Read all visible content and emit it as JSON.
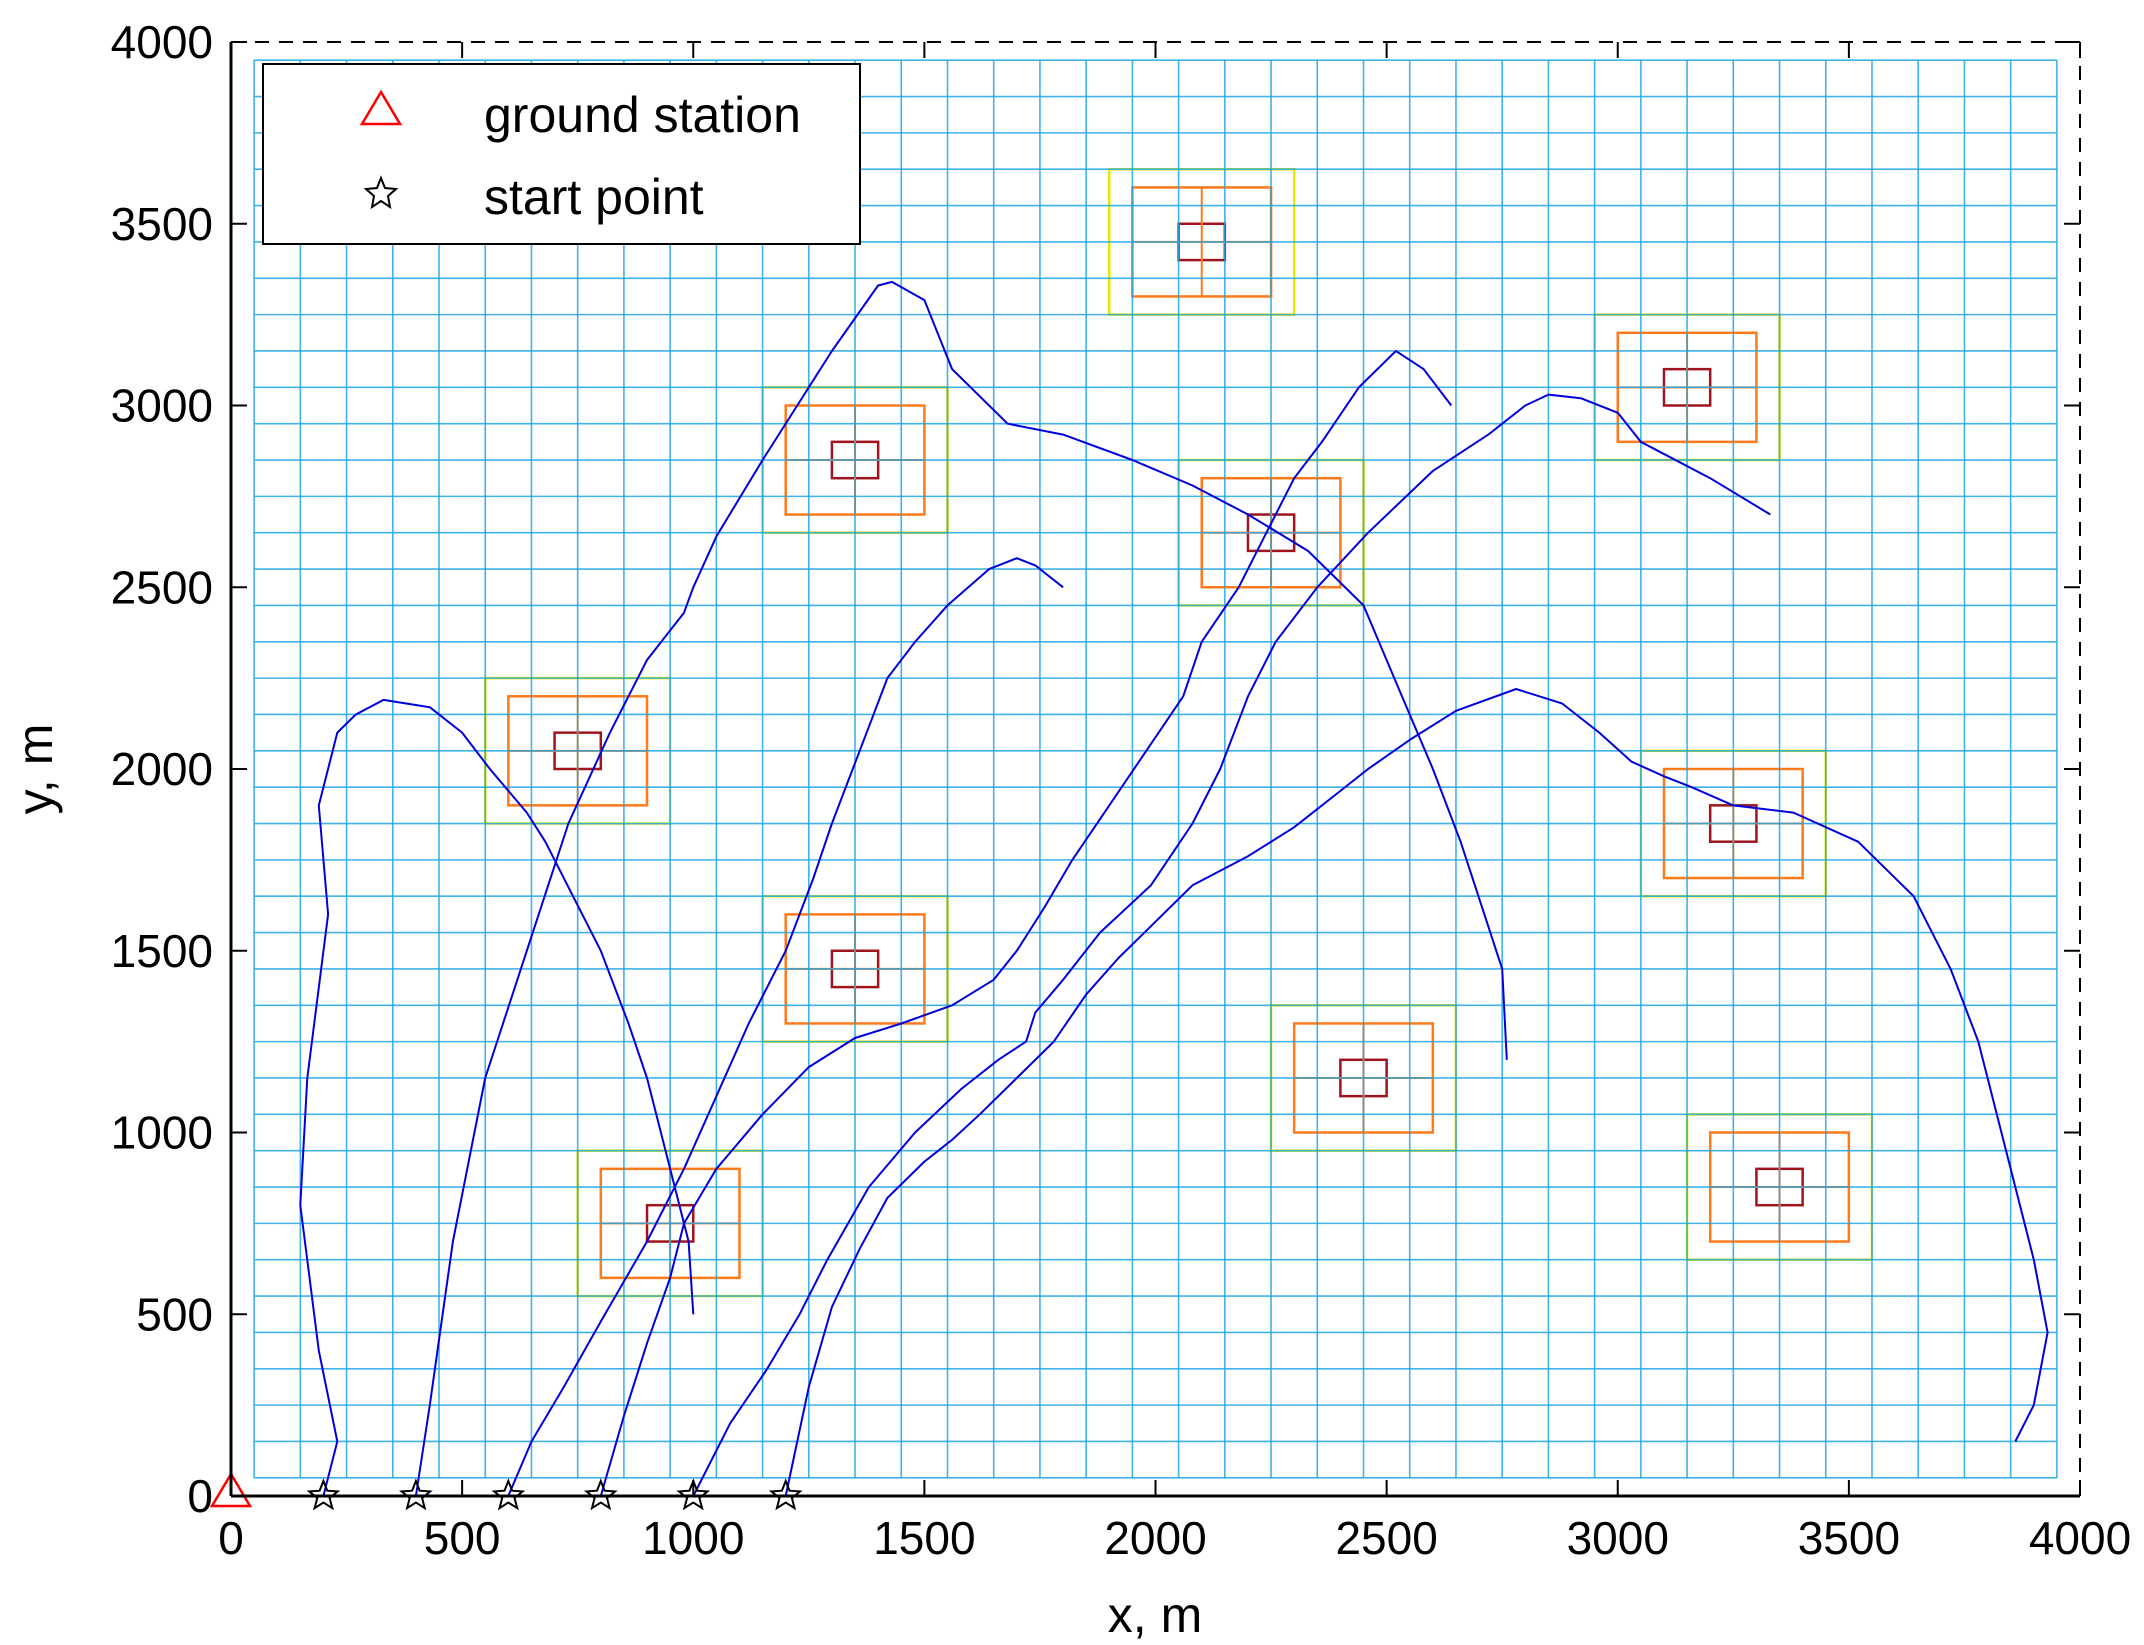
{
  "chart_data": {
    "type": "line",
    "title": "",
    "xlabel": "x, m",
    "ylabel": "y, m",
    "xlim": [
      0,
      4000
    ],
    "ylim": [
      0,
      4000
    ],
    "xticks": [
      0,
      500,
      1000,
      1500,
      2000,
      2500,
      3000,
      3500,
      4000
    ],
    "yticks": [
      0,
      500,
      1000,
      1500,
      2000,
      2500,
      3000,
      3500,
      4000
    ],
    "xtick_labels": [
      "0",
      "500",
      "1000",
      "1500",
      "2000",
      "2500",
      "3000",
      "3500",
      "4000"
    ],
    "ytick_labels": [
      "0",
      "500",
      "1000",
      "1500",
      "2000",
      "2500",
      "3000",
      "3500",
      "4000"
    ],
    "grid": {
      "x_start": 50,
      "x_end": 3950,
      "y_start": 50,
      "y_end": 3950,
      "step": 100,
      "color": "#1ea6e6"
    },
    "legend": {
      "placement": "top-left",
      "entries": [
        {
          "label": "ground station",
          "marker": "triangle",
          "color": "#ff0000"
        },
        {
          "label": "start point",
          "marker": "star",
          "color": "#000000"
        }
      ]
    },
    "ground_station": {
      "x": 0,
      "y": 0,
      "color": "#ff0000"
    },
    "start_points": [
      {
        "x": 200,
        "y": 0
      },
      {
        "x": 400,
        "y": 0
      },
      {
        "x": 600,
        "y": 0
      },
      {
        "x": 800,
        "y": 0
      },
      {
        "x": 1000,
        "y": 0
      },
      {
        "x": 1200,
        "y": 0
      }
    ],
    "hotspots": [
      {
        "cx": 2100,
        "cy": 3450
      },
      {
        "cx": 1350,
        "cy": 2850
      },
      {
        "cx": 2250,
        "cy": 2650
      },
      {
        "cx": 3150,
        "cy": 3050
      },
      {
        "cx": 750,
        "cy": 2050
      },
      {
        "cx": 3250,
        "cy": 1850
      },
      {
        "cx": 1350,
        "cy": 1450
      },
      {
        "cx": 2450,
        "cy": 1150
      },
      {
        "cx": 3350,
        "cy": 850
      },
      {
        "cx": 950,
        "cy": 750
      }
    ],
    "hotspot_colors": {
      "outer": "#e8e800",
      "middle": "#ff7a1a",
      "core": "#a0141e"
    },
    "trajectory_color": "#0000dd",
    "series": [
      {
        "x": [
          200,
          230,
          190,
          150,
          165,
          210,
          190,
          220,
          230,
          270,
          330,
          430,
          500,
          560,
          640,
          680,
          720,
          800,
          860,
          900,
          930,
          990,
          1000
        ],
        "y": [
          0,
          150,
          400,
          800,
          1150,
          1600,
          1900,
          2050,
          2100,
          2150,
          2190,
          2170,
          2100,
          2000,
          1880,
          1800,
          1700,
          1500,
          1300,
          1150,
          1000,
          700,
          500
        ]
      },
      {
        "x": [
          400,
          430,
          480,
          550,
          640,
          730,
          820,
          900,
          980,
          1000,
          1050,
          1150,
          1300,
          1400,
          1430,
          1500,
          1560,
          1680,
          1800,
          1950,
          2080,
          2200,
          2330,
          2450,
          2500,
          2550,
          2600,
          2660,
          2750,
          2760
        ],
        "y": [
          0,
          250,
          700,
          1150,
          1500,
          1850,
          2100,
          2300,
          2430,
          2500,
          2640,
          2850,
          3150,
          3330,
          3340,
          3290,
          3100,
          2950,
          2920,
          2850,
          2780,
          2700,
          2600,
          2450,
          2300,
          2150,
          2000,
          1800,
          1450,
          1200
        ]
      },
      {
        "x": [
          600,
          650,
          720,
          800,
          900,
          980,
          1050,
          1120,
          1200,
          1260,
          1300,
          1360,
          1420,
          1480,
          1550,
          1640,
          1700,
          1740,
          1800
        ],
        "y": [
          0,
          150,
          300,
          480,
          700,
          900,
          1100,
          1300,
          1500,
          1700,
          1850,
          2050,
          2250,
          2350,
          2450,
          2550,
          2580,
          2560,
          2500
        ]
      },
      {
        "x": [
          800,
          850,
          900,
          950,
          980,
          1050,
          1150,
          1250,
          1350,
          1450,
          1560,
          1650,
          1700,
          1760,
          1820,
          1900,
          1980,
          2060,
          2100,
          2180,
          2240,
          2300,
          2360,
          2440,
          2520,
          2580,
          2640
        ],
        "y": [
          0,
          220,
          420,
          600,
          750,
          900,
          1050,
          1180,
          1260,
          1300,
          1350,
          1420,
          1500,
          1620,
          1750,
          1900,
          2050,
          2200,
          2350,
          2500,
          2650,
          2800,
          2900,
          3050,
          3150,
          3100,
          3000
        ]
      },
      {
        "x": [
          1000,
          1080,
          1160,
          1230,
          1290,
          1380,
          1480,
          1580,
          1660,
          1720,
          1740,
          1800,
          1880,
          1990,
          2080,
          2140,
          2200,
          2260,
          2350,
          2460,
          2600,
          2720,
          2800,
          2850,
          2920,
          3000,
          3050,
          3200,
          3330
        ],
        "y": [
          0,
          200,
          350,
          500,
          650,
          850,
          1000,
          1120,
          1200,
          1250,
          1330,
          1420,
          1550,
          1680,
          1850,
          2000,
          2200,
          2350,
          2500,
          2650,
          2820,
          2920,
          3000,
          3030,
          3020,
          2980,
          2900,
          2800,
          2700
        ]
      },
      {
        "x": [
          1200,
          1250,
          1300,
          1360,
          1420,
          1500,
          1560,
          1620,
          1700,
          1780,
          1850,
          1920,
          2000,
          2080,
          2200,
          2300,
          2380,
          2460,
          2550,
          2650,
          2780,
          2880,
          2960,
          3030,
          3100,
          3160,
          3250,
          3380,
          3520,
          3640,
          3720,
          3780,
          3820,
          3860,
          3900,
          3930,
          3900,
          3860
        ],
        "y": [
          0,
          300,
          520,
          680,
          820,
          920,
          980,
          1050,
          1150,
          1250,
          1380,
          1480,
          1580,
          1680,
          1760,
          1840,
          1920,
          2000,
          2080,
          2160,
          2220,
          2180,
          2100,
          2020,
          1980,
          1950,
          1900,
          1880,
          1800,
          1650,
          1450,
          1250,
          1050,
          850,
          650,
          450,
          250,
          150
        ]
      }
    ]
  }
}
